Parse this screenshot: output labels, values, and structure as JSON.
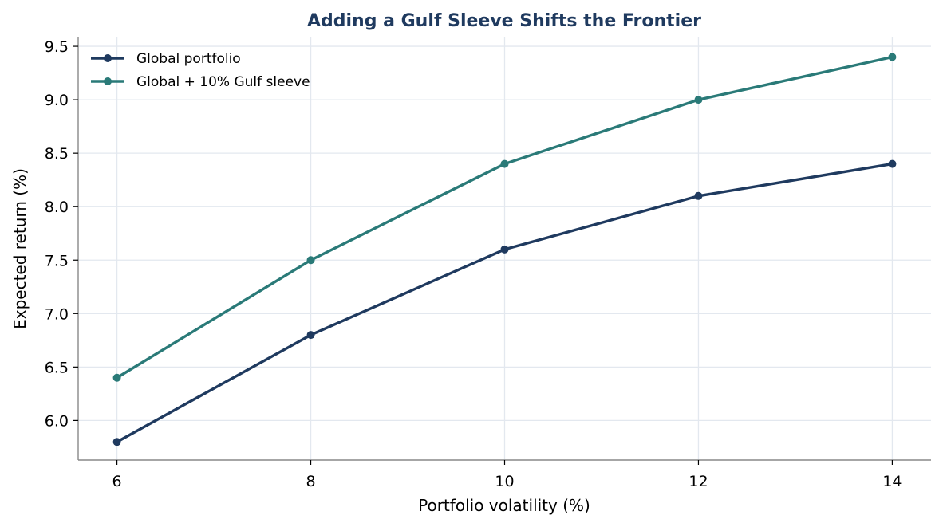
{
  "chart_data": {
    "type": "line",
    "title": "Adding a Gulf Sleeve Shifts the Frontier",
    "xlabel": "Portfolio volatility (%)",
    "ylabel": "Expected return (%)",
    "x": [
      6,
      8,
      10,
      12,
      14
    ],
    "xticks": [
      "6",
      "8",
      "10",
      "12",
      "14"
    ],
    "yticks": [
      "6.0",
      "6.5",
      "7.0",
      "7.5",
      "8.0",
      "8.5",
      "9.0",
      "9.5"
    ],
    "xlim": [
      5.6,
      14.4
    ],
    "ylim": [
      5.63,
      9.59
    ],
    "grid": true,
    "legend_position": "top-left",
    "series": [
      {
        "name": "Global portfolio",
        "values": [
          5.8,
          6.8,
          7.6,
          8.1,
          8.4
        ],
        "color": "#1f3a5f"
      },
      {
        "name": "Global + 10% Gulf sleeve",
        "values": [
          6.4,
          7.5,
          8.4,
          9.0,
          9.4
        ],
        "color": "#2a7a78"
      }
    ],
    "colors": {
      "title": "#1f3a5f",
      "grid": "#e3e8ef",
      "axis": "#888888"
    }
  }
}
